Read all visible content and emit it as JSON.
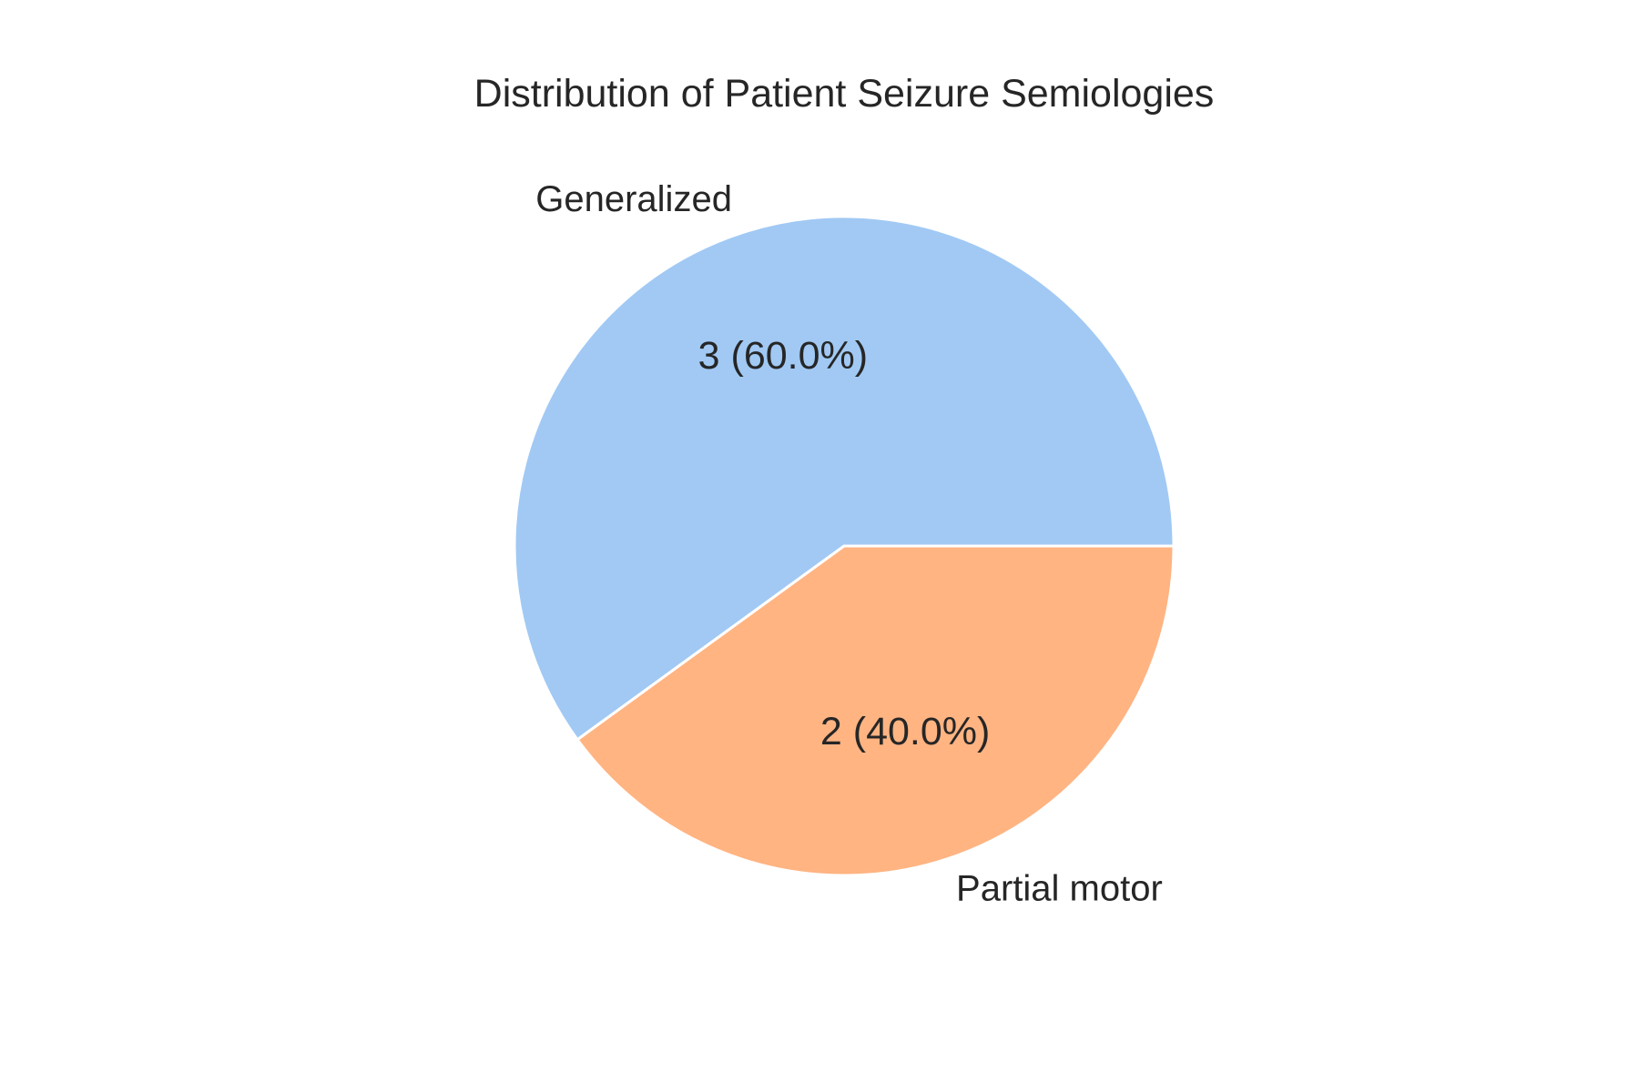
{
  "chart_data": {
    "type": "pie",
    "title": "Distribution of Patient Seizure Semiologies",
    "categories": [
      "Generalized",
      "Partial motor"
    ],
    "values": [
      3,
      2
    ],
    "percent_labels": [
      "3 (60.0%)",
      "2 (40.0%)"
    ],
    "colors": [
      "#a1c9f4",
      "#ffb482"
    ],
    "edge_color": "#ffffff",
    "start_angle_deg": 0,
    "direction": "counterclockwise"
  }
}
